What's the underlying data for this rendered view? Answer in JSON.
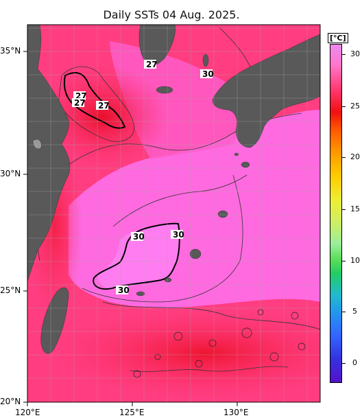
{
  "title": "Daily SSTs 04 Aug. 2025.",
  "colorbar": {
    "unit": "[°C]",
    "ticks": [
      "30",
      "25",
      "20",
      "15",
      "10",
      "5",
      "0"
    ]
  },
  "axes": {
    "lon_labels": [
      "120°E",
      "125°E",
      "130°E"
    ],
    "lat_labels": [
      "35°N",
      "30°N",
      "25°N",
      "20°N"
    ]
  },
  "contour_labels": [
    "27",
    "27",
    "27",
    "27",
    "30",
    "30",
    "30",
    "30"
  ],
  "colors": {
    "warm_ocean": "#ff3d7a",
    "hot_ocean": "#ee1a3a",
    "pink_ocean": "#ff66dd",
    "land": "#595959"
  }
}
